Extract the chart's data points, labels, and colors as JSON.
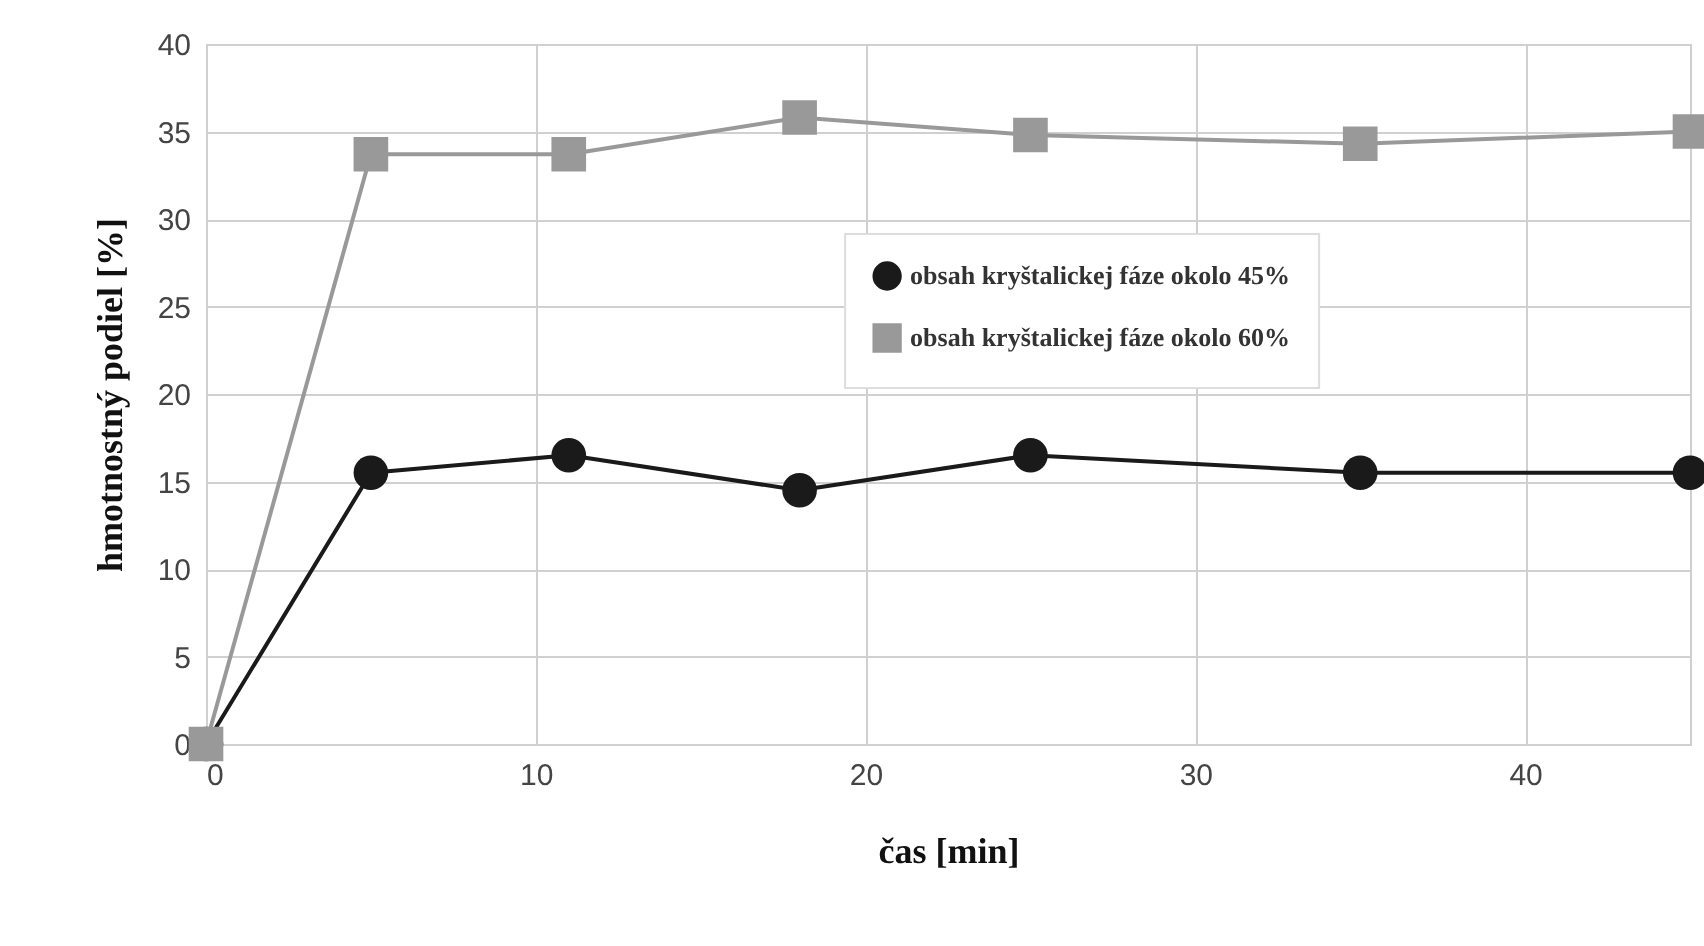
{
  "chart_data": {
    "type": "line",
    "xlabel": "čas [min]",
    "ylabel": "hmotnostný podiel [%]",
    "x": [
      0,
      5,
      11,
      18,
      25,
      35,
      45
    ],
    "series": [
      {
        "name": "obsah kryštalickej fáze okolo 45%",
        "color": "#1a1a1a",
        "marker": "circle",
        "values": [
          0,
          15.5,
          16.5,
          14.5,
          16.5,
          15.5,
          15.5
        ]
      },
      {
        "name": "obsah kryštalickej fáze okolo 60%",
        "color": "#999999",
        "marker": "square",
        "values": [
          0,
          33.7,
          33.7,
          35.8,
          34.8,
          34.3,
          35
        ]
      }
    ],
    "xlim": [
      0,
      45
    ],
    "xticks": [
      0,
      10,
      20,
      30,
      40
    ],
    "ylim": [
      0,
      40
    ],
    "yticks": [
      0,
      5,
      10,
      15,
      20,
      25,
      30,
      35,
      40
    ],
    "grid": true,
    "legend": "top right"
  }
}
